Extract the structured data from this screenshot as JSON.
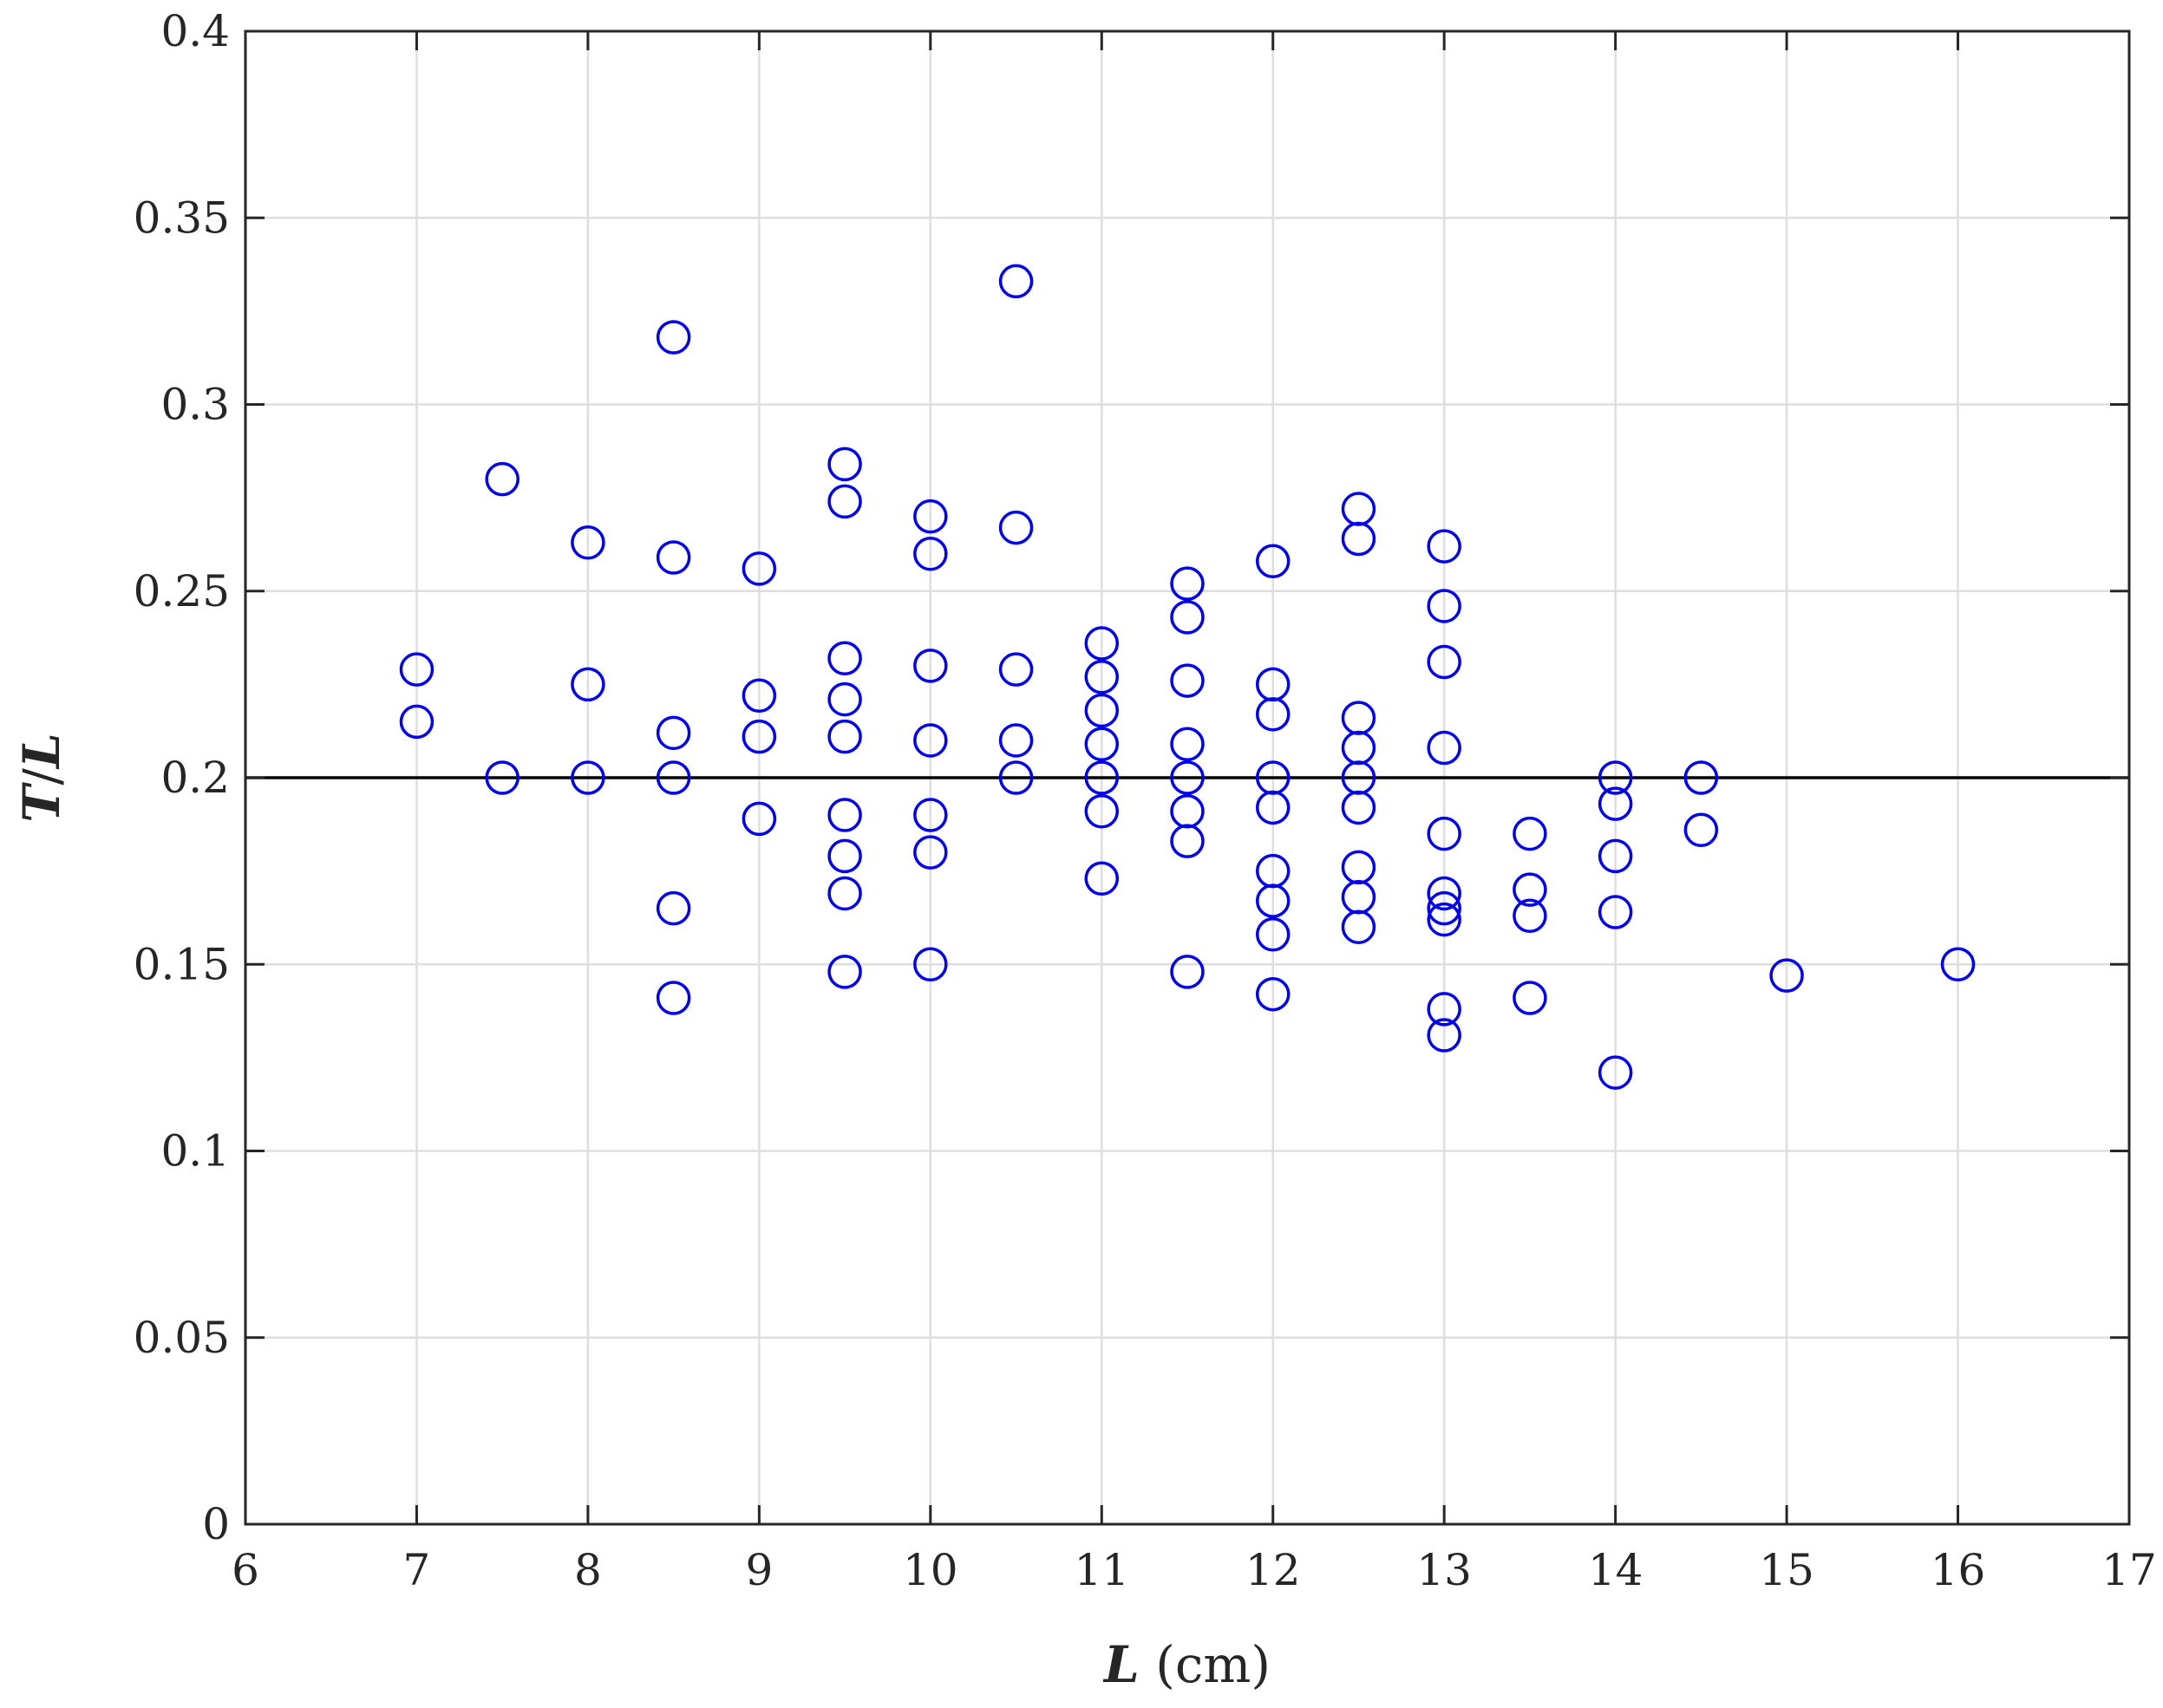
{
  "chart_data": {
    "type": "scatter",
    "xlabel": "L (cm)",
    "ylabel": "T/L",
    "xlim": [
      6,
      17
    ],
    "ylim": [
      0,
      0.4
    ],
    "xticks": [
      "6",
      "7",
      "8",
      "9",
      "10",
      "11",
      "12",
      "13",
      "14",
      "15",
      "16",
      "17"
    ],
    "yticks": [
      "0",
      "0.05",
      "0.1",
      "0.15",
      "0.2",
      "0.25",
      "0.3",
      "0.35",
      "0.4"
    ],
    "grid": true,
    "marker": "open-circle",
    "marker_color": "#0000ee",
    "reference_line": {
      "y": 0.2,
      "color": "#000000"
    },
    "points": [
      [
        7,
        0.229
      ],
      [
        7,
        0.215
      ],
      [
        7.5,
        0.28
      ],
      [
        7.5,
        0.2
      ],
      [
        8,
        0.263
      ],
      [
        8,
        0.225
      ],
      [
        8,
        0.2
      ],
      [
        8.5,
        0.318
      ],
      [
        8.5,
        0.259
      ],
      [
        8.5,
        0.212
      ],
      [
        8.5,
        0.2
      ],
      [
        8.5,
        0.165
      ],
      [
        8.5,
        0.141
      ],
      [
        9,
        0.256
      ],
      [
        9,
        0.222
      ],
      [
        9,
        0.211
      ],
      [
        9,
        0.189
      ],
      [
        9.5,
        0.284
      ],
      [
        9.5,
        0.274
      ],
      [
        9.5,
        0.232
      ],
      [
        9.5,
        0.221
      ],
      [
        9.5,
        0.211
      ],
      [
        9.5,
        0.19
      ],
      [
        9.5,
        0.179
      ],
      [
        9.5,
        0.169
      ],
      [
        9.5,
        0.148
      ],
      [
        10,
        0.27
      ],
      [
        10,
        0.26
      ],
      [
        10,
        0.23
      ],
      [
        10,
        0.21
      ],
      [
        10,
        0.19
      ],
      [
        10,
        0.18
      ],
      [
        10,
        0.15
      ],
      [
        10.5,
        0.333
      ],
      [
        10.5,
        0.267
      ],
      [
        10.5,
        0.229
      ],
      [
        10.5,
        0.21
      ],
      [
        10.5,
        0.2
      ],
      [
        11,
        0.236
      ],
      [
        11,
        0.227
      ],
      [
        11,
        0.218
      ],
      [
        11,
        0.209
      ],
      [
        11,
        0.2
      ],
      [
        11,
        0.191
      ],
      [
        11,
        0.173
      ],
      [
        11.5,
        0.252
      ],
      [
        11.5,
        0.243
      ],
      [
        11.5,
        0.226
      ],
      [
        11.5,
        0.209
      ],
      [
        11.5,
        0.2
      ],
      [
        11.5,
        0.191
      ],
      [
        11.5,
        0.183
      ],
      [
        11.5,
        0.148
      ],
      [
        12,
        0.258
      ],
      [
        12,
        0.225
      ],
      [
        12,
        0.217
      ],
      [
        12,
        0.2
      ],
      [
        12,
        0.192
      ],
      [
        12,
        0.175
      ],
      [
        12,
        0.167
      ],
      [
        12,
        0.158
      ],
      [
        12,
        0.142
      ],
      [
        12.5,
        0.272
      ],
      [
        12.5,
        0.264
      ],
      [
        12.5,
        0.216
      ],
      [
        12.5,
        0.208
      ],
      [
        12.5,
        0.2
      ],
      [
        12.5,
        0.192
      ],
      [
        12.5,
        0.176
      ],
      [
        12.5,
        0.168
      ],
      [
        12.5,
        0.16
      ],
      [
        13,
        0.262
      ],
      [
        13,
        0.246
      ],
      [
        13,
        0.231
      ],
      [
        13,
        0.208
      ],
      [
        13,
        0.185
      ],
      [
        13,
        0.169
      ],
      [
        13,
        0.165
      ],
      [
        13,
        0.162
      ],
      [
        13,
        0.138
      ],
      [
        13,
        0.131
      ],
      [
        13.5,
        0.185
      ],
      [
        13.5,
        0.17
      ],
      [
        13.5,
        0.163
      ],
      [
        13.5,
        0.141
      ],
      [
        14,
        0.2
      ],
      [
        14,
        0.193
      ],
      [
        14,
        0.179
      ],
      [
        14,
        0.164
      ],
      [
        14,
        0.121
      ],
      [
        14.5,
        0.2
      ],
      [
        14.5,
        0.186
      ],
      [
        15,
        0.147
      ],
      [
        16,
        0.15
      ]
    ]
  }
}
